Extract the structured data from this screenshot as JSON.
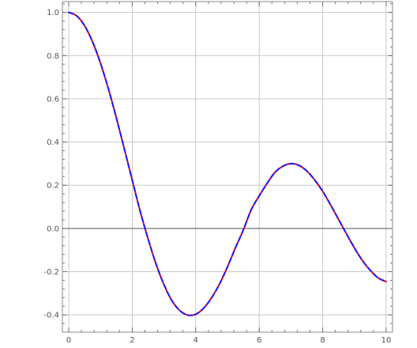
{
  "chart_data": {
    "type": "line",
    "title": "",
    "xlabel": "",
    "ylabel": "",
    "xlim": [
      -0.2,
      10.2
    ],
    "ylim": [
      -0.48,
      1.05
    ],
    "grid": true,
    "legend": "none",
    "x_ticks": [
      0,
      2,
      4,
      6,
      8,
      10
    ],
    "x_tick_labels": [
      "0",
      "2",
      "4",
      "6",
      "8",
      "10"
    ],
    "y_ticks": [
      -0.4,
      -0.2,
      0.0,
      0.2,
      0.4,
      0.6,
      0.8,
      1.0
    ],
    "y_tick_labels": [
      "-0.4",
      "-0.2",
      "0.0",
      "0.2",
      "0.4",
      "0.6",
      "0.8",
      "1.0"
    ],
    "series": [
      {
        "color": "#ff0000",
        "style": "solid",
        "x": [
          0,
          0.25,
          0.5,
          0.75,
          1,
          1.25,
          1.5,
          1.75,
          2,
          2.25,
          2.5,
          2.75,
          3,
          3.25,
          3.5,
          3.75,
          4,
          4.25,
          4.5,
          4.75,
          5,
          5.25,
          5.5,
          5.75,
          6,
          6.25,
          6.5,
          6.75,
          7,
          7.25,
          7.5,
          7.75,
          8,
          8.25,
          8.5,
          8.75,
          9,
          9.25,
          9.5,
          9.75,
          10
        ],
        "values": [
          1.0,
          0.984,
          0.938,
          0.864,
          0.765,
          0.646,
          0.512,
          0.369,
          0.224,
          0.08,
          -0.048,
          -0.164,
          -0.26,
          -0.334,
          -0.38,
          -0.401,
          -0.397,
          -0.369,
          -0.321,
          -0.257,
          -0.178,
          -0.09,
          -0.007,
          0.087,
          0.151,
          0.209,
          0.26,
          0.288,
          0.3,
          0.292,
          0.266,
          0.224,
          0.172,
          0.109,
          0.042,
          -0.025,
          -0.09,
          -0.148,
          -0.194,
          -0.229,
          -0.246
        ]
      },
      {
        "color": "#1a1aff",
        "style": "dashed",
        "x": [
          0,
          0.25,
          0.5,
          0.75,
          1,
          1.25,
          1.5,
          1.75,
          2,
          2.25,
          2.5,
          2.75,
          3,
          3.25,
          3.5,
          3.75,
          4,
          4.25,
          4.5,
          4.75,
          5,
          5.25,
          5.5,
          5.75,
          6,
          6.25,
          6.5,
          6.75,
          7,
          7.25,
          7.5,
          7.75,
          8,
          8.25,
          8.5,
          8.75,
          9,
          9.25,
          9.5,
          9.75,
          10
        ],
        "values": [
          1.0,
          0.984,
          0.938,
          0.864,
          0.765,
          0.646,
          0.512,
          0.369,
          0.224,
          0.08,
          -0.048,
          -0.164,
          -0.26,
          -0.334,
          -0.38,
          -0.401,
          -0.397,
          -0.369,
          -0.321,
          -0.257,
          -0.178,
          -0.09,
          -0.007,
          0.087,
          0.151,
          0.209,
          0.26,
          0.288,
          0.3,
          0.292,
          0.266,
          0.224,
          0.172,
          0.109,
          0.042,
          -0.025,
          -0.09,
          -0.148,
          -0.194,
          -0.229,
          -0.246
        ]
      }
    ]
  }
}
